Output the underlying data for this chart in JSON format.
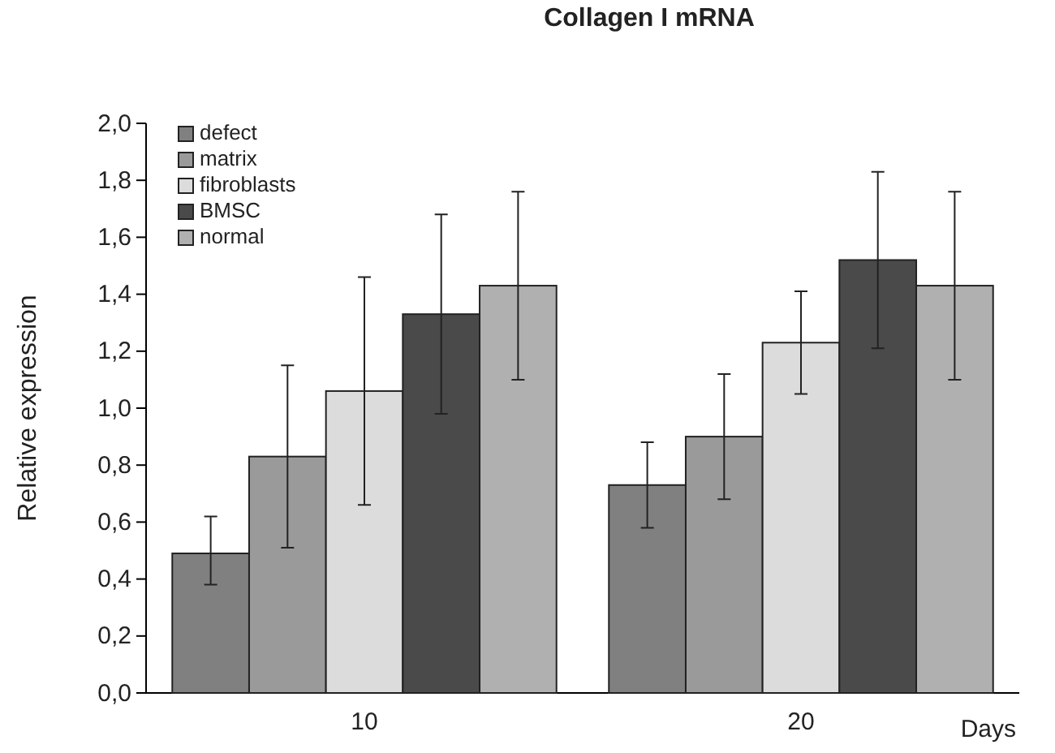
{
  "chart_data": {
    "type": "bar",
    "title": "Collagen I mRNA",
    "xlabel": "Days",
    "ylabel": "Relative expression",
    "categories": [
      "10",
      "20"
    ],
    "series": [
      {
        "name": "defect",
        "color": "#808080",
        "values": [
          0.49,
          0.73
        ],
        "errors": [
          [
            0.38,
            0.62
          ],
          [
            0.58,
            0.88
          ]
        ]
      },
      {
        "name": "matrix",
        "color": "#9a9a9a",
        "values": [
          0.83,
          0.9
        ],
        "errors": [
          [
            0.51,
            1.15
          ],
          [
            0.68,
            1.12
          ]
        ]
      },
      {
        "name": "fibroblasts",
        "color": "#dcdcdc",
        "values": [
          1.06,
          1.23
        ],
        "errors": [
          [
            0.66,
            1.46
          ],
          [
            1.05,
            1.41
          ]
        ]
      },
      {
        "name": "BMSC",
        "color": "#4a4a4a",
        "values": [
          1.33,
          1.52
        ],
        "errors": [
          [
            0.98,
            1.68
          ],
          [
            1.21,
            1.83
          ]
        ]
      },
      {
        "name": "normal",
        "color": "#b0b0b0",
        "values": [
          1.43,
          1.43
        ],
        "errors": [
          [
            1.1,
            1.76
          ],
          [
            1.1,
            1.76
          ]
        ]
      }
    ],
    "ylim": [
      0,
      2
    ],
    "yticks": [
      {
        "value": 0,
        "label": "0,0"
      },
      {
        "value": 0.2,
        "label": "0,2"
      },
      {
        "value": 0.4,
        "label": "0,4"
      },
      {
        "value": 0.6,
        "label": "0,6"
      },
      {
        "value": 0.8,
        "label": "0,8"
      },
      {
        "value": 1,
        "label": "1,0"
      },
      {
        "value": 1.2,
        "label": "1,2"
      },
      {
        "value": 1.4,
        "label": "1,4"
      },
      {
        "value": 1.6,
        "label": "1,6"
      },
      {
        "value": 1.8,
        "label": "1,8"
      },
      {
        "value": 2,
        "label": "2,0"
      }
    ],
    "legend": "top left",
    "grid": false
  }
}
